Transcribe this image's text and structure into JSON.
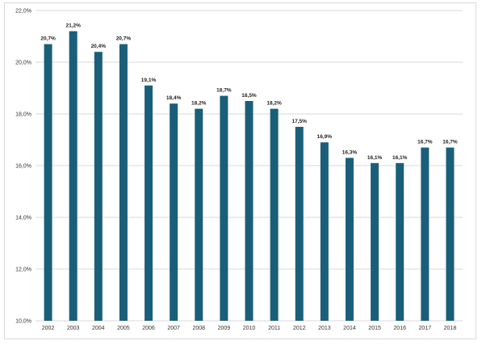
{
  "chart_data": {
    "type": "bar",
    "categories": [
      "2002",
      "2003",
      "2004",
      "2005",
      "2006",
      "2007",
      "2008",
      "2009",
      "2010",
      "2011",
      "2012",
      "2013",
      "2014",
      "2015",
      "2016",
      "2017",
      "2018"
    ],
    "values": [
      20.7,
      21.2,
      20.4,
      20.7,
      19.1,
      18.4,
      18.2,
      18.7,
      18.5,
      18.2,
      17.5,
      16.9,
      16.3,
      16.1,
      16.1,
      16.7,
      16.7
    ],
    "data_labels": [
      "20,7%",
      "21,2%",
      "20,4%",
      "20,7%",
      "19,1%",
      "18,4%",
      "18,2%",
      "18,7%",
      "18,5%",
      "18,2%",
      "17,5%",
      "16,9%",
      "16,3%",
      "16,1%",
      "16,1%",
      "16,7%",
      "16,7%"
    ],
    "y_ticks": [
      10,
      12,
      14,
      16,
      18,
      20,
      22
    ],
    "y_tick_labels": [
      "10,0%",
      "12,0%",
      "14,0%",
      "16,0%",
      "18,0%",
      "20,0%",
      "22,0%"
    ],
    "ylim": [
      10,
      22
    ],
    "title": "",
    "xlabel": "",
    "ylabel": "",
    "grid": true,
    "bar_color": "#1a5f7a",
    "grid_color": "#d9d9d9"
  }
}
